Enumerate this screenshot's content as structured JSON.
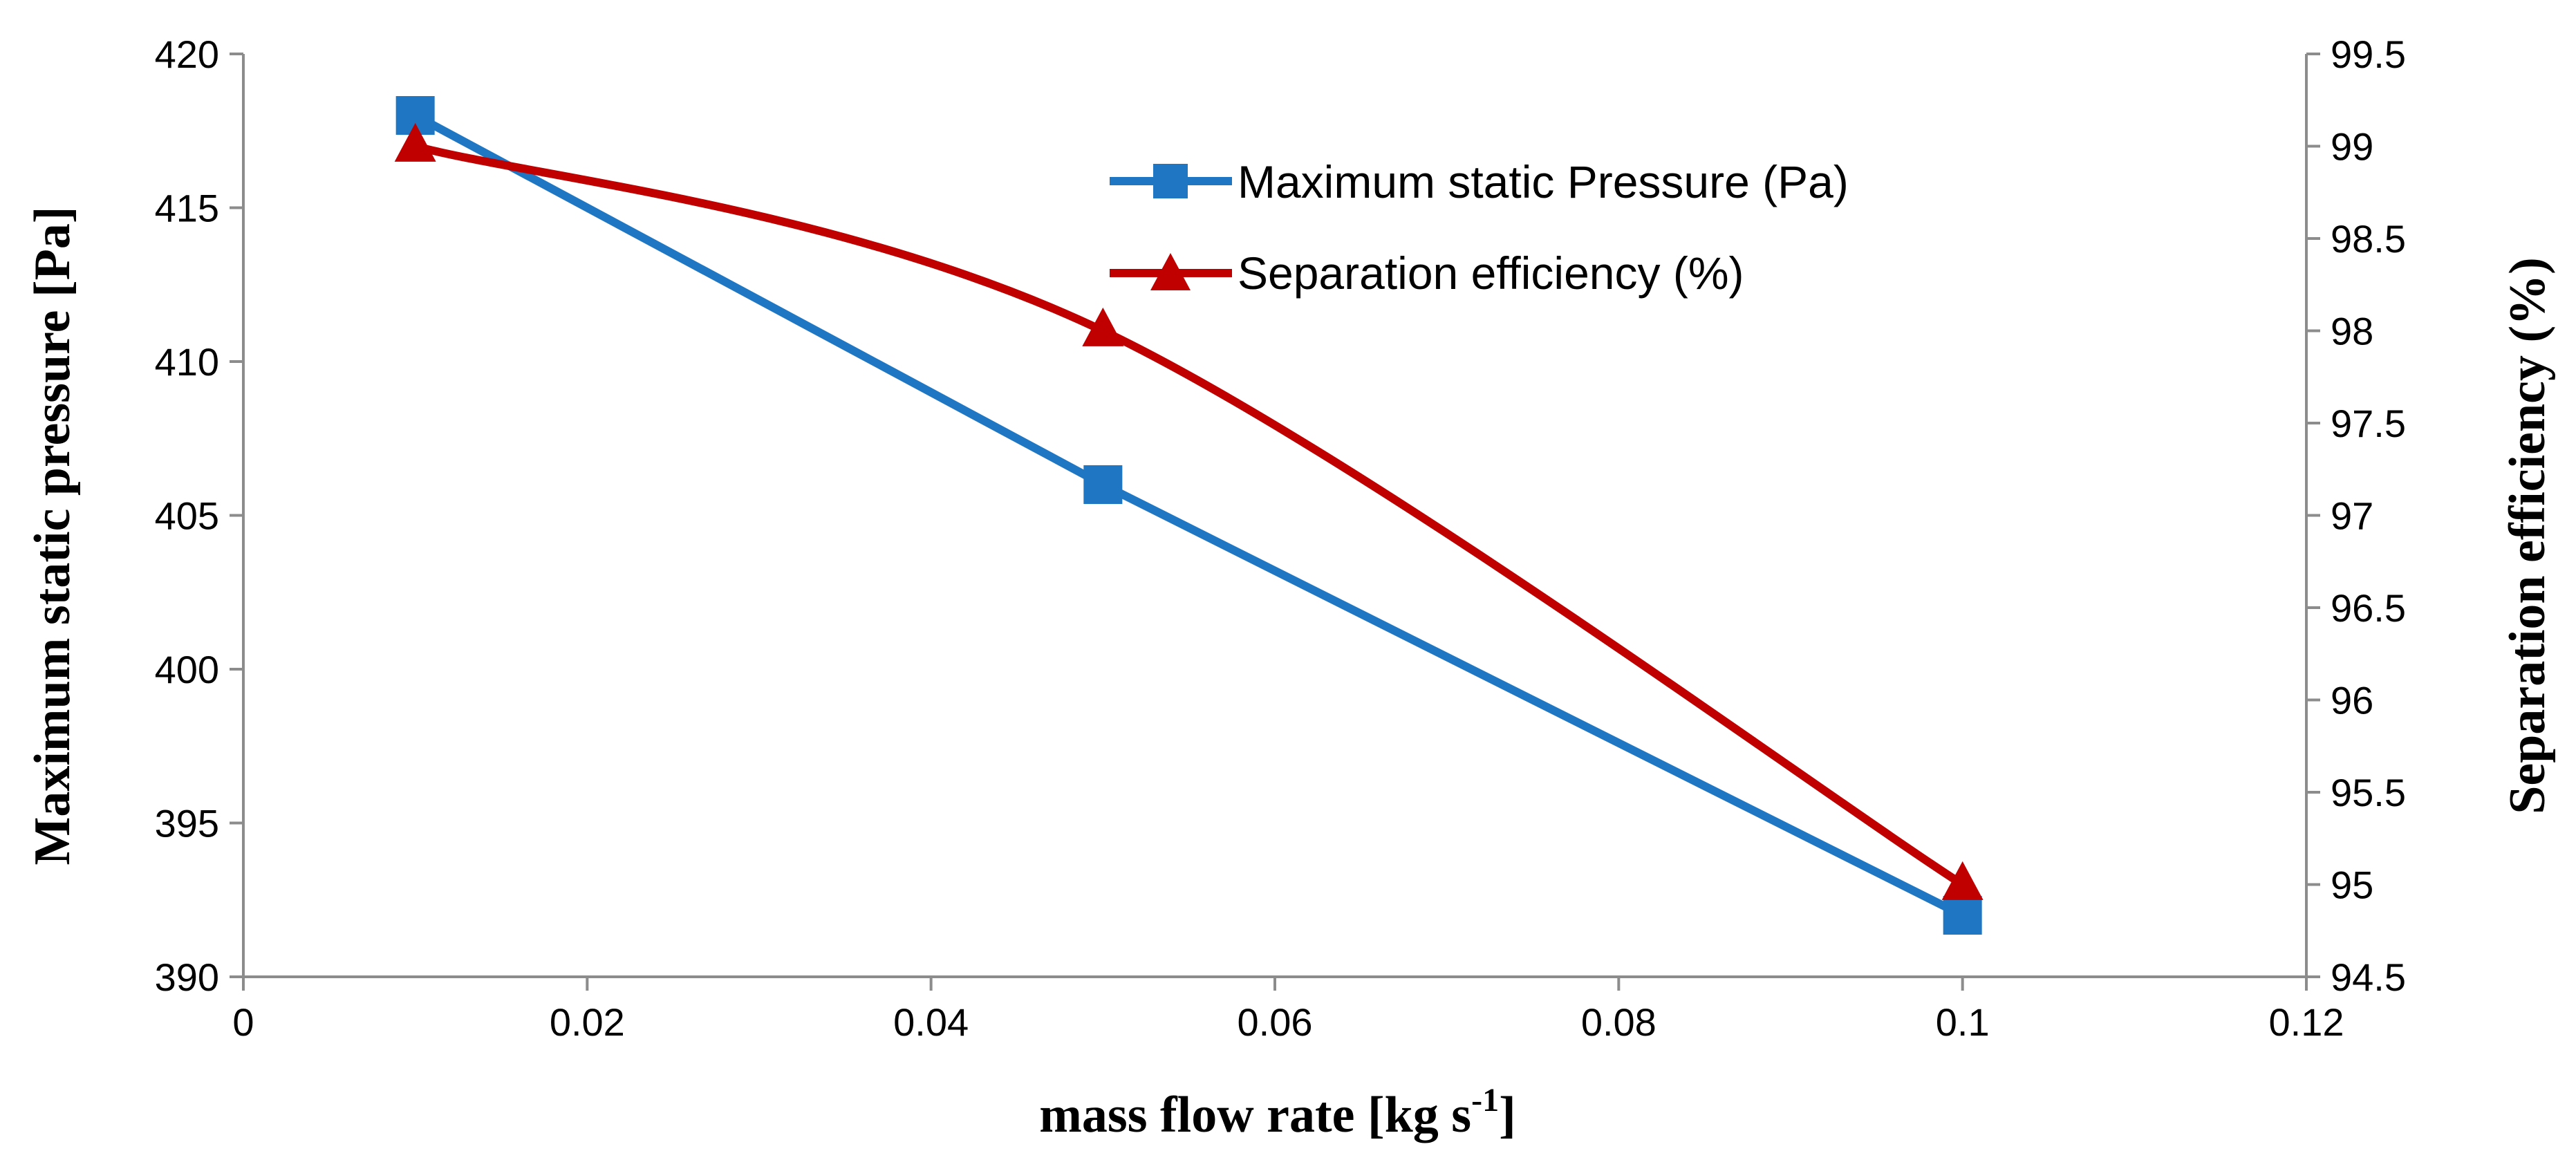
{
  "chart_data": {
    "type": "line",
    "x": [
      0.01,
      0.05,
      0.1
    ],
    "xlim": [
      0,
      0.12
    ],
    "x_ticks": [
      "0",
      "0.02",
      "0.04",
      "0.06",
      "0.08",
      "0.1",
      "0.12"
    ],
    "xlabel": {
      "main": "mass flow rate [kg s",
      "sup": "-1",
      "end": "]"
    },
    "y_left": {
      "label": "Maximum static pressure [Pa]",
      "lim": [
        390,
        420
      ],
      "ticks": [
        "390",
        "395",
        "400",
        "405",
        "410",
        "415",
        "420"
      ]
    },
    "y_right": {
      "label": "Separation efficiency (%)",
      "lim": [
        94.5,
        99.5
      ],
      "ticks": [
        "94.5",
        "95",
        "95.5",
        "96",
        "96.5",
        "97",
        "97.5",
        "98",
        "98.5",
        "99",
        "99.5"
      ]
    },
    "series": [
      {
        "name": "Maximum static Pressure (Pa)",
        "axis": "left",
        "marker": "square",
        "color": "#1f77c4",
        "values": [
          418,
          406,
          392
        ]
      },
      {
        "name": "Separation efficiency (%)",
        "axis": "right",
        "marker": "triangle",
        "color": "#c00000",
        "values": [
          99,
          98,
          95
        ]
      }
    ],
    "legend_position": "top-center",
    "grid": false
  }
}
